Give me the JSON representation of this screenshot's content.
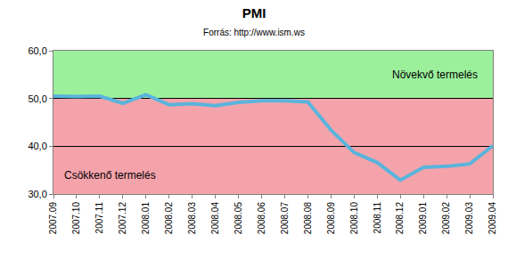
{
  "chart_data": {
    "type": "line",
    "title": "PMI",
    "subtitle": "Forrás: http://www.ism.ws",
    "categories": [
      "2007.09",
      "2007.10",
      "2007.11",
      "2007.12",
      "2008.01",
      "2008.02",
      "2008.03",
      "2008.04",
      "2008.05",
      "2008.06",
      "2008.07",
      "2008.08",
      "2008.09",
      "2008.10",
      "2008.11",
      "2008.12",
      "2009.01",
      "2009.02",
      "2009.03",
      "2009.04"
    ],
    "values": [
      50.5,
      50.4,
      50.5,
      49.0,
      50.8,
      48.7,
      48.9,
      48.5,
      49.2,
      49.5,
      49.5,
      49.3,
      43.4,
      38.7,
      36.6,
      32.9,
      35.6,
      35.8,
      36.3,
      40.1
    ],
    "color": "#5ab4dc",
    "ylim": [
      30,
      60
    ],
    "yticks": [
      {
        "value": 30,
        "label": "30,0"
      },
      {
        "value": 40,
        "label": "40,0"
      },
      {
        "value": 50,
        "label": "50,0"
      },
      {
        "value": 60,
        "label": "60,0"
      }
    ],
    "grid": true,
    "regions": [
      {
        "label": "Növekvő termelés",
        "from": 50,
        "to": 60,
        "color": "#9cf09c"
      },
      {
        "label": "Csökkenő termelés",
        "from": 30,
        "to": 50,
        "color": "#f5a3ab"
      }
    ]
  }
}
